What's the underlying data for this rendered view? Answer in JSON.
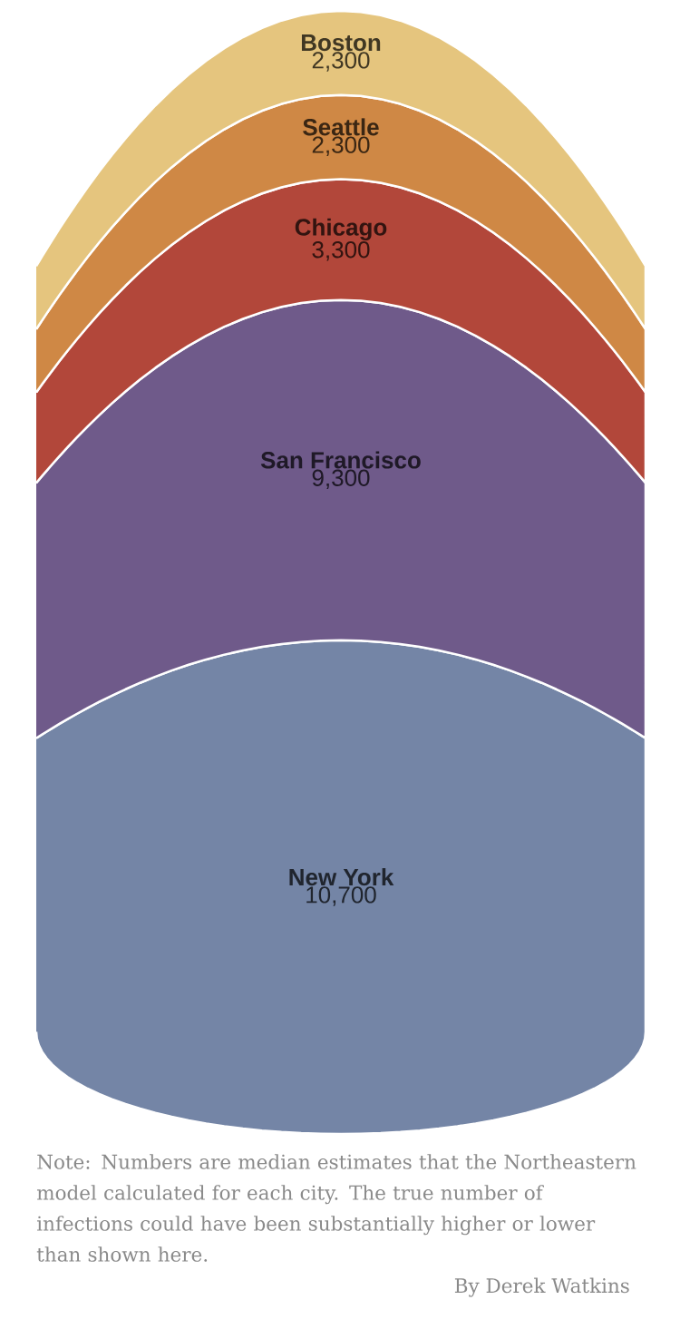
{
  "chart_data": {
    "type": "other",
    "categories": [
      "Boston",
      "Seattle",
      "Chicago",
      "San Francisco",
      "New York"
    ],
    "values": [
      2300,
      2300,
      3300,
      9300,
      10700
    ],
    "colors": [
      "#e5c57e",
      "#cf8845",
      "#b2473a",
      "#6f5a8a",
      "#7485a6"
    ],
    "value_labels": [
      "2,300",
      "2,300",
      "3,300",
      "9,300",
      "10,700"
    ],
    "annotations": [
      "Note: Numbers are median estimates that the Northeastern model calculated for each city. The true number of infections could have been substantially higher or lower than shown here.",
      "By Derek Watkins"
    ]
  }
}
